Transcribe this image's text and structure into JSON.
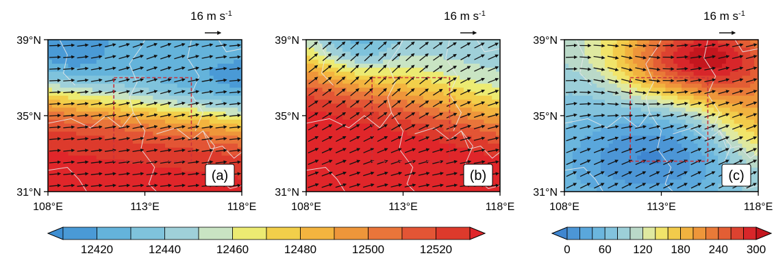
{
  "panels": [
    {
      "label": "(a)",
      "field": "gph"
    },
    {
      "label": "(b)",
      "field": "gph"
    },
    {
      "label": "(c)",
      "field": "diff"
    }
  ],
  "reference_vector": {
    "label": "16 m s",
    "superscript": "-1",
    "speed": 16,
    "unit": "m s-1"
  },
  "lat_ticks": [
    {
      "value": 39,
      "label": "39°N"
    },
    {
      "value": 35,
      "label": "35°N"
    },
    {
      "value": 31,
      "label": "31°N"
    }
  ],
  "lon_ticks": [
    {
      "value": 108,
      "label": "108°E"
    },
    {
      "value": 113,
      "label": "113°E"
    },
    {
      "value": 118,
      "label": "118°E"
    }
  ],
  "domain": {
    "lon": [
      108,
      118
    ],
    "lat": [
      31,
      39
    ]
  },
  "study_box": {
    "lon": [
      111.4,
      115.4
    ],
    "lat": [
      32.6,
      37.0
    ]
  },
  "colorbars": {
    "gph": {
      "labels": [
        "12420",
        "12440",
        "12460",
        "12480",
        "12500",
        "12520"
      ],
      "levels": [
        12410,
        12420,
        12430,
        12440,
        12450,
        12460,
        12470,
        12480,
        12490,
        12500,
        12510,
        12520,
        12530
      ],
      "colors": [
        "#3f8fd2",
        "#4a9ad6",
        "#64b3db",
        "#7fc3dc",
        "#9fd0d9",
        "#c9e4c3",
        "#eceb72",
        "#f2cf4a",
        "#f3b43f",
        "#ee963a",
        "#e9753a",
        "#e35535",
        "#dd3a2c",
        "#e0262a"
      ]
    },
    "diff": {
      "labels": [
        "0",
        "60",
        "120",
        "180",
        "240",
        "300"
      ],
      "levels": [
        0,
        20,
        40,
        60,
        80,
        100,
        120,
        140,
        160,
        180,
        200,
        220,
        240,
        260,
        280,
        300
      ],
      "colors": [
        "#3f86d0",
        "#4c96d6",
        "#5aa7dc",
        "#6bb6de",
        "#82c3dd",
        "#9ccfd8",
        "#bad9c8",
        "#dfe9a0",
        "#f1e46a",
        "#f2cb4b",
        "#f1b23f",
        "#ee963a",
        "#e97a38",
        "#e35e34",
        "#dd4230",
        "#d8262a",
        "#c4161e"
      ]
    }
  },
  "colors": {
    "box": "#c8323c",
    "arrow": "#111111",
    "boundary": "#e8e8e8"
  }
}
